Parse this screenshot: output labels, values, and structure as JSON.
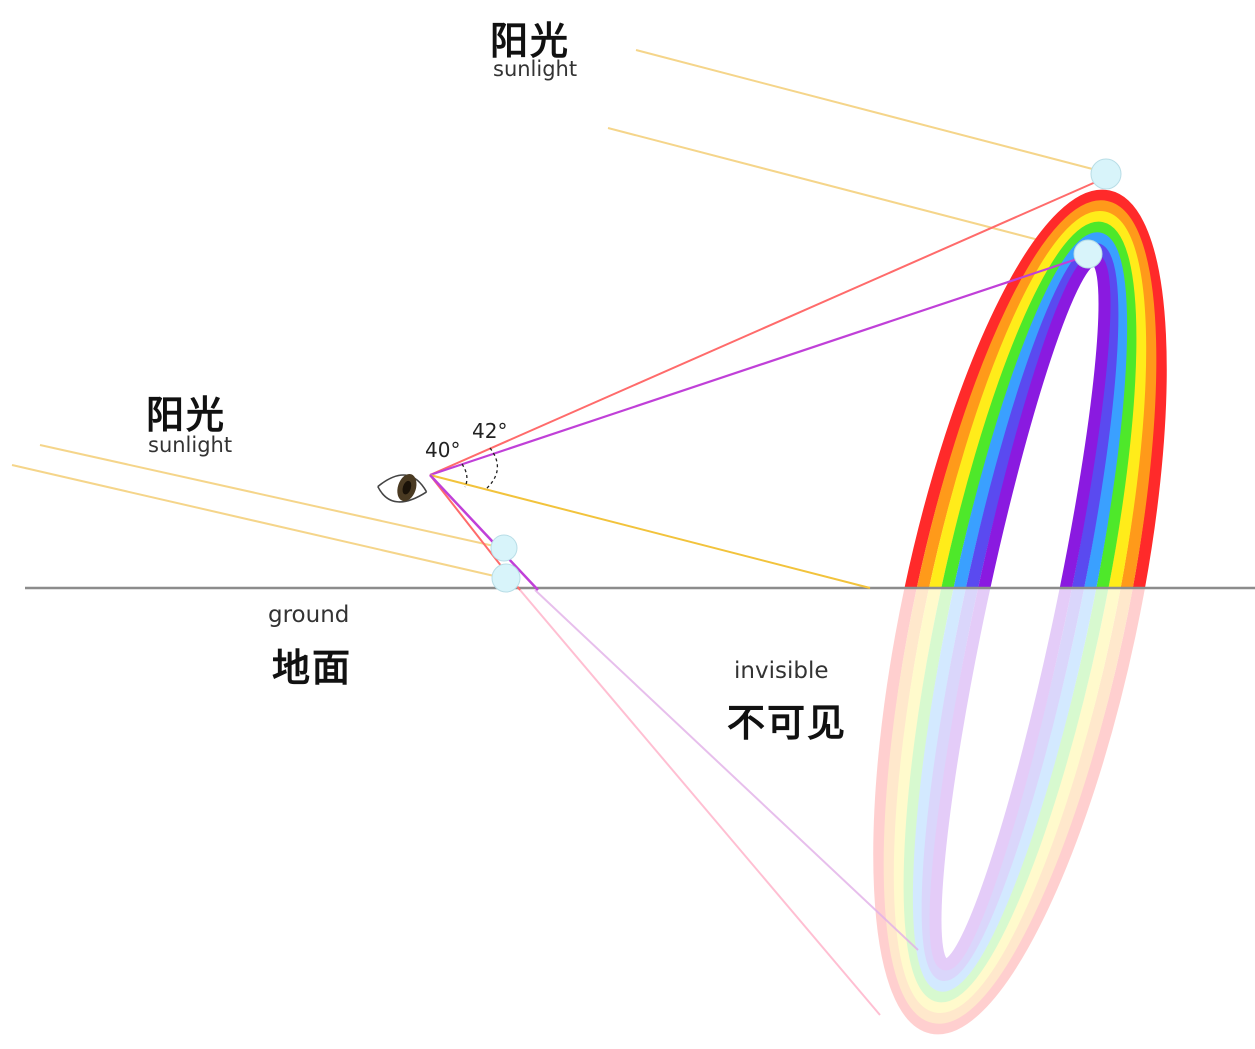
{
  "labels": {
    "sunlight_top_zh": "阳光",
    "sunlight_top_en": "sunlight",
    "sunlight_left_zh": "阳光",
    "sunlight_left_en": "sunlight",
    "ground_en": "ground",
    "ground_zh": "地面",
    "invisible_en": "invisible",
    "invisible_zh": "不可见",
    "angle_violet": "40°",
    "angle_red": "42°"
  },
  "colors": {
    "sunlight": "#f5d58a",
    "ground": "#8c8c8c",
    "red_ray": "#ff6b6b",
    "violet_ray": "#c040d8",
    "antisolar_ray": "#f2c33c",
    "droplet": "#d8f4fa",
    "bands": [
      "#ff2a2a",
      "#ff9a1a",
      "#ffec1a",
      "#4ee82a",
      "#3aa0ff",
      "#5a4af0",
      "#8a1ae0"
    ]
  },
  "icons": {
    "observer": "eye-icon"
  }
}
